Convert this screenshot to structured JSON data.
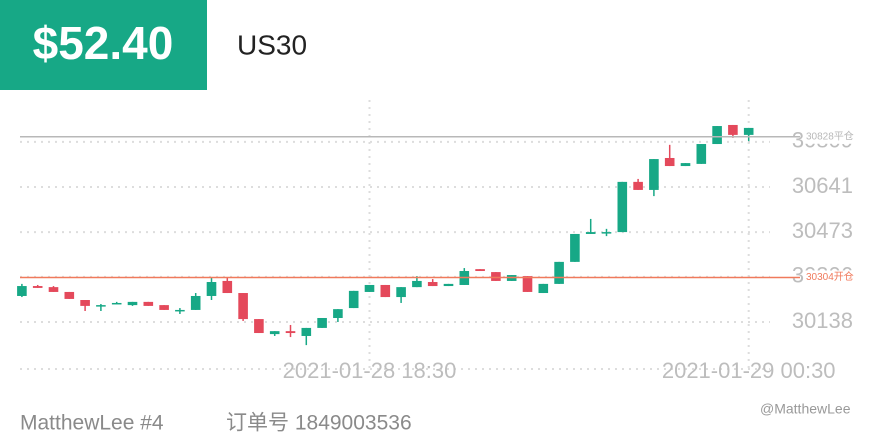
{
  "header": {
    "price": "$52.40",
    "symbol": "US30"
  },
  "chart_data": {
    "type": "candlestick",
    "categories": [
      null,
      null,
      null,
      null,
      null,
      null,
      null,
      null,
      null,
      null,
      null,
      null,
      null,
      null,
      null,
      null,
      null,
      null,
      null,
      null,
      null,
      null,
      "2021-01-28 18:30",
      null,
      null,
      null,
      null,
      null,
      null,
      null,
      null,
      null,
      null,
      null,
      null,
      null,
      null,
      null,
      null,
      null,
      null,
      null,
      null,
      null,
      null,
      null,
      "2021-01-29 00:30"
    ],
    "open": [
      30235,
      30272,
      30268,
      30250,
      30220,
      30198,
      30209,
      30201,
      30213,
      30201,
      30179,
      30183,
      30235,
      30291,
      30246,
      30149,
      30093,
      30104,
      30086,
      30116,
      30153,
      30190,
      30250,
      30276,
      30231,
      30268,
      30287,
      30272,
      30276,
      30335,
      30324,
      30291,
      30309,
      30246,
      30280,
      30362,
      30466,
      30473,
      30473,
      30660,
      30630,
      30749,
      30719,
      30727,
      30801,
      30872,
      30835
    ],
    "high": [
      30280,
      30276,
      30272,
      30250,
      30220,
      30205,
      30213,
      30213,
      30213,
      30201,
      30190,
      30246,
      30302,
      30302,
      30246,
      30149,
      30104,
      30127,
      30116,
      30153,
      30186,
      30254,
      30276,
      30276,
      30268,
      30309,
      30298,
      30280,
      30339,
      30335,
      30324,
      30313,
      30309,
      30280,
      30362,
      30466,
      30522,
      30485,
      30660,
      30671,
      30745,
      30798,
      30730,
      30801,
      30868,
      30872,
      30861
    ],
    "low": [
      30231,
      30265,
      30250,
      30224,
      30179,
      30179,
      30205,
      30198,
      30198,
      30183,
      30168,
      30183,
      30220,
      30246,
      30142,
      30097,
      30086,
      30082,
      30052,
      30116,
      30138,
      30190,
      30250,
      30231,
      30209,
      30268,
      30272,
      30272,
      30276,
      30328,
      30291,
      30291,
      30250,
      30246,
      30280,
      30362,
      30466,
      30458,
      30473,
      30630,
      30607,
      30719,
      30719,
      30727,
      30801,
      30824,
      30812
    ],
    "close": [
      30272,
      30265,
      30250,
      30224,
      30198,
      30201,
      30209,
      30213,
      30198,
      30183,
      30183,
      30235,
      30287,
      30246,
      30149,
      30097,
      30104,
      30097,
      30116,
      30153,
      30186,
      30254,
      30276,
      30231,
      30268,
      30291,
      30272,
      30280,
      30328,
      30328,
      30291,
      30313,
      30250,
      30280,
      30362,
      30466,
      30473,
      30473,
      30660,
      30630,
      30745,
      30719,
      30730,
      30801,
      30868,
      30835,
      30861
    ],
    "up_color": "#17a886",
    "down_color": "#e4495b",
    "ylim": [
      29963,
      30965
    ],
    "yticks": [
      30138,
      30306,
      30473,
      30641,
      30809
    ],
    "grid": true,
    "reference_lines": [
      {
        "value": 30828,
        "label": "30828平仓",
        "color": "#b8b8b8"
      },
      {
        "value": 30304,
        "label": "30304开仓",
        "color": "#f07a5c"
      }
    ]
  },
  "footer": {
    "account": "MatthewLee #4",
    "order": "订单号 1849003536",
    "watermark": "@MatthewLee"
  }
}
